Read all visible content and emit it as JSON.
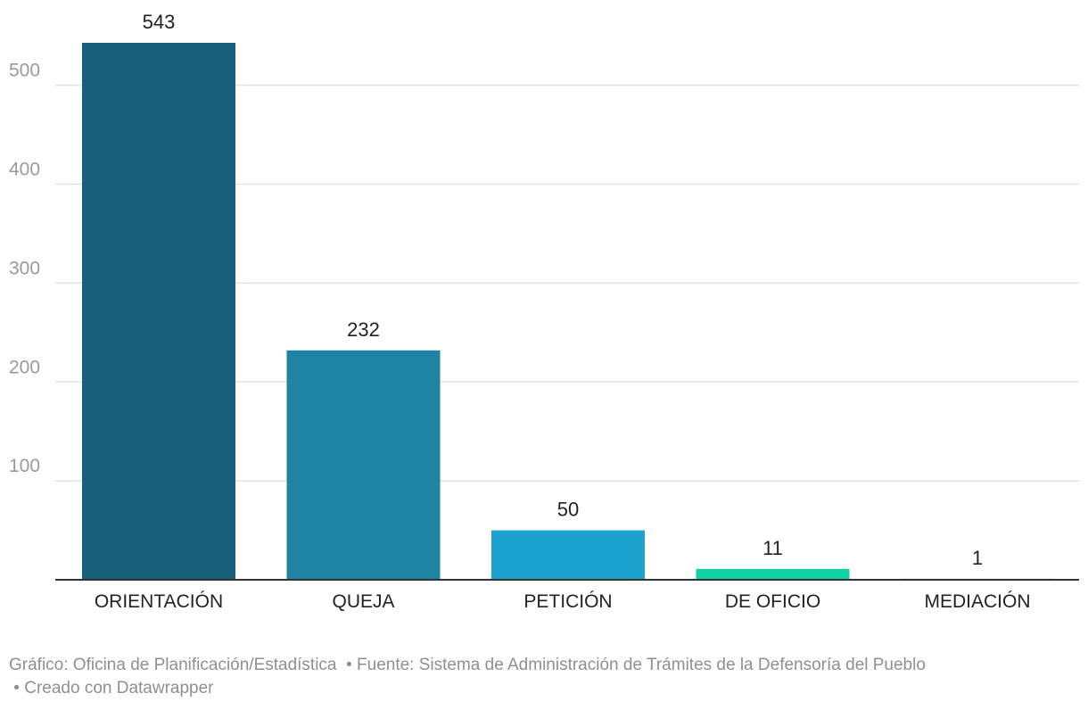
{
  "chart_data": {
    "type": "bar",
    "categories": [
      "ORIENTACIÓN",
      "QUEJA",
      "PETICIÓN",
      "DE OFICIO",
      "MEDIACIÓN"
    ],
    "values": [
      543,
      232,
      50,
      11,
      1
    ],
    "colors": [
      "#175f7a",
      "#1f84a3",
      "#1ba2d0",
      "#10d2a3",
      "#10d2a3"
    ],
    "yticks": [
      100,
      200,
      300,
      400,
      500
    ],
    "ylim": [
      0,
      543
    ],
    "grid": true,
    "gridColor": "#e2e2e2",
    "tickColor": "#9a9a9a",
    "labelColor": "#222222",
    "baselineColor": "#333333"
  },
  "footer": {
    "grafico": "Gráfico: Oficina de Planificación/Estadística",
    "fuente": "Fuente: Sistema de Administración de Trámites de la Defensoría del Pueblo",
    "creado": "Creado con Datawrapper",
    "bullet": "•"
  }
}
